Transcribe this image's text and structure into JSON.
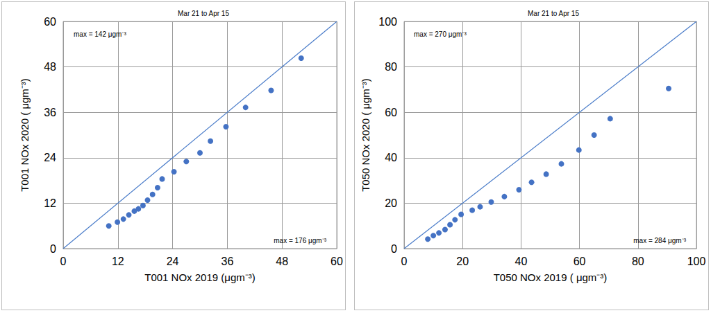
{
  "chart_data": [
    {
      "type": "scatter",
      "title": "Mar 21 to Apr 15",
      "x_label": "T001 NOx 2019 (μgm⁻³)",
      "y_label": "T001 NOx 2020 ( μgm⁻³)",
      "annotations": [
        "max = 142 μgm⁻³",
        "max = 176 μgm⁻³"
      ],
      "xlim": [
        0,
        60
      ],
      "ylim": [
        0,
        60
      ],
      "xticks": [
        0,
        12,
        24,
        36,
        48,
        60
      ],
      "yticks": [
        0,
        12,
        24,
        36,
        48,
        60
      ],
      "grid": true,
      "series": [
        {
          "type": "scatter",
          "color": "#4472c4",
          "marker": "circle",
          "x": [
            10,
            11.9,
            13.2,
            14.4,
            15.6,
            16.5,
            17.5,
            18.5,
            19.6,
            20.7,
            21.7,
            24.3,
            27.0,
            30.0,
            32.3,
            35.7,
            40.0,
            45.6,
            52.2
          ],
          "values": [
            6.0,
            7.0,
            7.8,
            8.9,
            9.9,
            10.5,
            11.4,
            12.8,
            14.3,
            16.1,
            18.4,
            20.3,
            23.0,
            25.3,
            28.4,
            32.2,
            37.3,
            41.8,
            50.3
          ]
        },
        {
          "type": "line",
          "color": "#4a7cc9",
          "line_style": "solid",
          "x": [
            0,
            60
          ],
          "values": [
            0,
            60
          ]
        }
      ]
    },
    {
      "type": "scatter",
      "title": "Mar 21 to Apr 15",
      "x_label": "T050 NOx 2019 ( μgm⁻³)",
      "y_label": "T050 NOx 2020 ( μgm⁻³)",
      "annotations": [
        "max = 270 μgm⁻³",
        "max = 284 μgm⁻³"
      ],
      "xlim": [
        0,
        100
      ],
      "ylim": [
        0,
        100
      ],
      "xticks": [
        0,
        20,
        40,
        60,
        80,
        100
      ],
      "yticks": [
        0,
        20,
        40,
        60,
        80,
        100
      ],
      "grid": true,
      "series": [
        {
          "type": "scatter",
          "color": "#4472c4",
          "marker": "circle",
          "x": [
            8.1,
            10.0,
            11.9,
            14.0,
            15.7,
            17.4,
            19.5,
            23.3,
            26.0,
            29.8,
            34.3,
            39.3,
            43.6,
            48.6,
            53.8,
            59.8,
            65.0,
            70.5,
            90.5
          ],
          "values": [
            4.2,
            5.7,
            6.9,
            8.4,
            10.5,
            12.7,
            15.1,
            16.9,
            18.4,
            20.5,
            22.9,
            25.9,
            29.2,
            32.8,
            37.3,
            43.4,
            50.0,
            57.2,
            70.5
          ]
        },
        {
          "type": "line",
          "color": "#4a7cc9",
          "line_style": "solid",
          "x": [
            0,
            100
          ],
          "values": [
            0,
            100
          ]
        }
      ]
    }
  ]
}
